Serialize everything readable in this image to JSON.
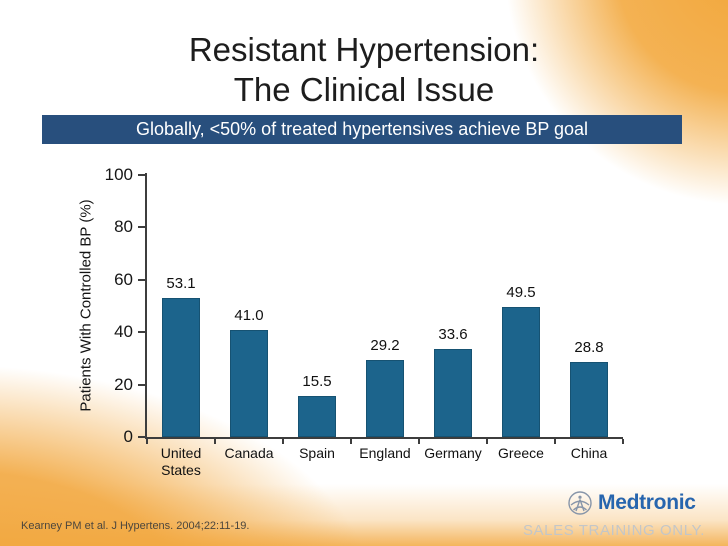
{
  "slide": {
    "title_line1": "Resistant Hypertension:",
    "title_line2": "The Clinical Issue",
    "banner": "Globally, <50% of treated hypertensives achieve BP goal",
    "citation": "Kearney PM et al. J Hypertens. 2004;22:11-19.",
    "brand": {
      "logo_text": "Medtronic",
      "tagline": "SALES TRAINING ONLY."
    }
  },
  "colors": {
    "banner_blue": "#284F7D",
    "bar_blue": "#1C648C",
    "accent_orange": "#F2A840",
    "medtronic_blue": "#2765AE",
    "tagline_gray": "#C3C6C8"
  },
  "chart_data": {
    "type": "bar",
    "categories": [
      "United States",
      "Canada",
      "Spain",
      "England",
      "Germany",
      "Greece",
      "China"
    ],
    "values": [
      53.1,
      41.0,
      15.5,
      29.2,
      33.6,
      49.5,
      28.8
    ],
    "value_labels": [
      "53.1",
      "41.0",
      "15.5",
      "29.2",
      "33.6",
      "49.5",
      "28.8"
    ],
    "title": "",
    "xlabel": "",
    "ylabel": "Patients With Controlled BP (%)",
    "ylim": [
      0,
      100
    ],
    "yticks": [
      0,
      20,
      40,
      60,
      80,
      100
    ],
    "grid": false,
    "legend": null,
    "bar_color": "#1C648C"
  }
}
